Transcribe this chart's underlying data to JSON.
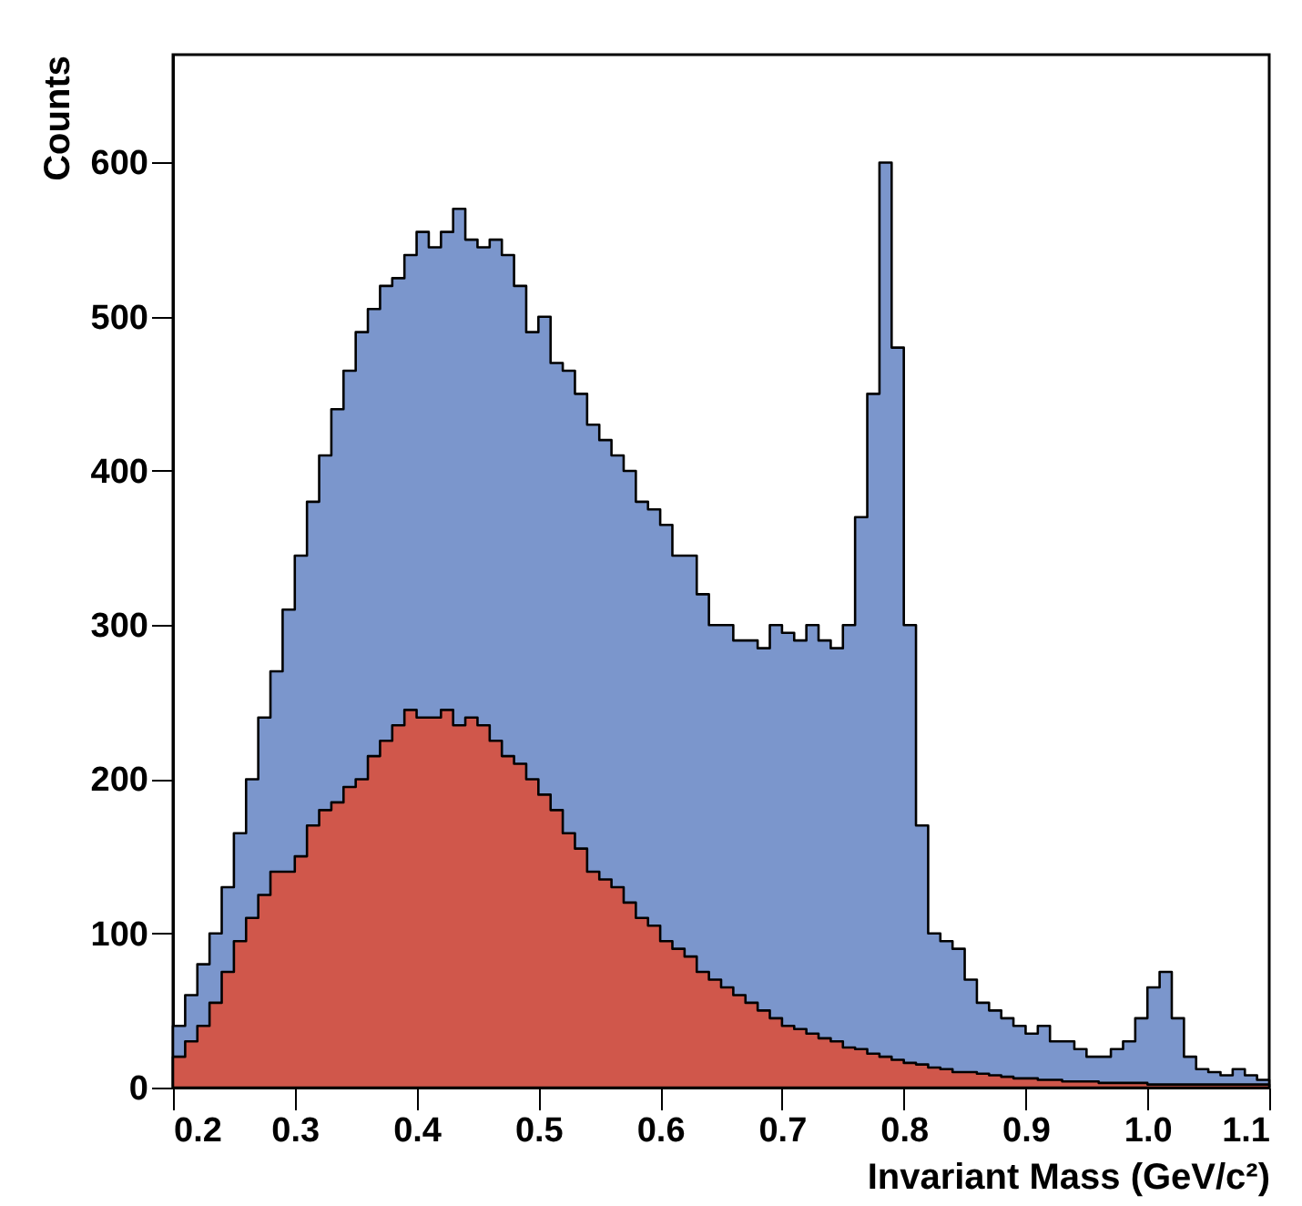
{
  "chart_data": {
    "type": "area",
    "xlabel": "Invariant Mass (GeV/c²)",
    "ylabel": "Counts",
    "line_style": "solid",
    "x": [
      0.2,
      0.21,
      0.22,
      0.23,
      0.24,
      0.25,
      0.26,
      0.27,
      0.28,
      0.29,
      0.3,
      0.31,
      0.32,
      0.33,
      0.34,
      0.35,
      0.36,
      0.37,
      0.38,
      0.39,
      0.4,
      0.41,
      0.42,
      0.43,
      0.44,
      0.45,
      0.46,
      0.47,
      0.48,
      0.49,
      0.5,
      0.51,
      0.52,
      0.53,
      0.54,
      0.55,
      0.56,
      0.57,
      0.58,
      0.59,
      0.6,
      0.61,
      0.62,
      0.63,
      0.64,
      0.65,
      0.66,
      0.67,
      0.68,
      0.69,
      0.7,
      0.71,
      0.72,
      0.73,
      0.74,
      0.75,
      0.76,
      0.77,
      0.78,
      0.79,
      0.8,
      0.81,
      0.82,
      0.83,
      0.84,
      0.85,
      0.86,
      0.87,
      0.88,
      0.89,
      0.9,
      0.91,
      0.92,
      0.93,
      0.94,
      0.95,
      0.96,
      0.97,
      0.98,
      0.99,
      1.0,
      1.01,
      1.02,
      1.03,
      1.04,
      1.05,
      1.06,
      1.07,
      1.08,
      1.09,
      1.1
    ],
    "series": [
      {
        "color": "#7b96cc",
        "values": [
          40,
          60,
          80,
          100,
          130,
          165,
          200,
          240,
          270,
          310,
          345,
          380,
          410,
          440,
          465,
          490,
          505,
          520,
          525,
          540,
          555,
          545,
          555,
          570,
          550,
          545,
          550,
          540,
          520,
          490,
          500,
          470,
          465,
          450,
          430,
          420,
          410,
          400,
          380,
          375,
          365,
          345,
          345,
          320,
          300,
          300,
          290,
          290,
          285,
          300,
          295,
          290,
          300,
          290,
          285,
          300,
          370,
          450,
          600,
          480,
          300,
          170,
          100,
          95,
          90,
          70,
          55,
          50,
          45,
          40,
          35,
          40,
          30,
          30,
          25,
          20,
          20,
          25,
          30,
          45,
          65,
          75,
          45,
          20,
          12,
          10,
          8,
          12,
          8,
          5,
          5
        ]
      },
      {
        "color": "#d0574b",
        "values": [
          20,
          30,
          40,
          55,
          75,
          95,
          110,
          125,
          140,
          140,
          150,
          170,
          180,
          185,
          195,
          200,
          215,
          225,
          235,
          245,
          240,
          240,
          245,
          235,
          240,
          235,
          225,
          215,
          210,
          200,
          190,
          180,
          165,
          155,
          140,
          135,
          130,
          120,
          110,
          105,
          95,
          90,
          85,
          75,
          70,
          65,
          60,
          55,
          50,
          45,
          40,
          38,
          35,
          32,
          30,
          26,
          25,
          22,
          20,
          18,
          16,
          15,
          13,
          12,
          10,
          10,
          9,
          8,
          7,
          6,
          6,
          5,
          5,
          4,
          4,
          4,
          3,
          3,
          3,
          3,
          2,
          2,
          2,
          2,
          2,
          2,
          2,
          2,
          2,
          2,
          2
        ]
      }
    ],
    "xlim": [
      0.2,
      1.1
    ],
    "xticks": [
      0.2,
      0.3,
      0.4,
      0.5,
      0.6,
      0.7,
      0.8,
      0.9,
      {
        "value": 1,
        "label": "1.0"
      },
      1.1
    ],
    "ylim": [
      0,
      670
    ],
    "yticks": [
      0,
      100,
      200,
      300,
      400,
      500,
      600
    ]
  }
}
